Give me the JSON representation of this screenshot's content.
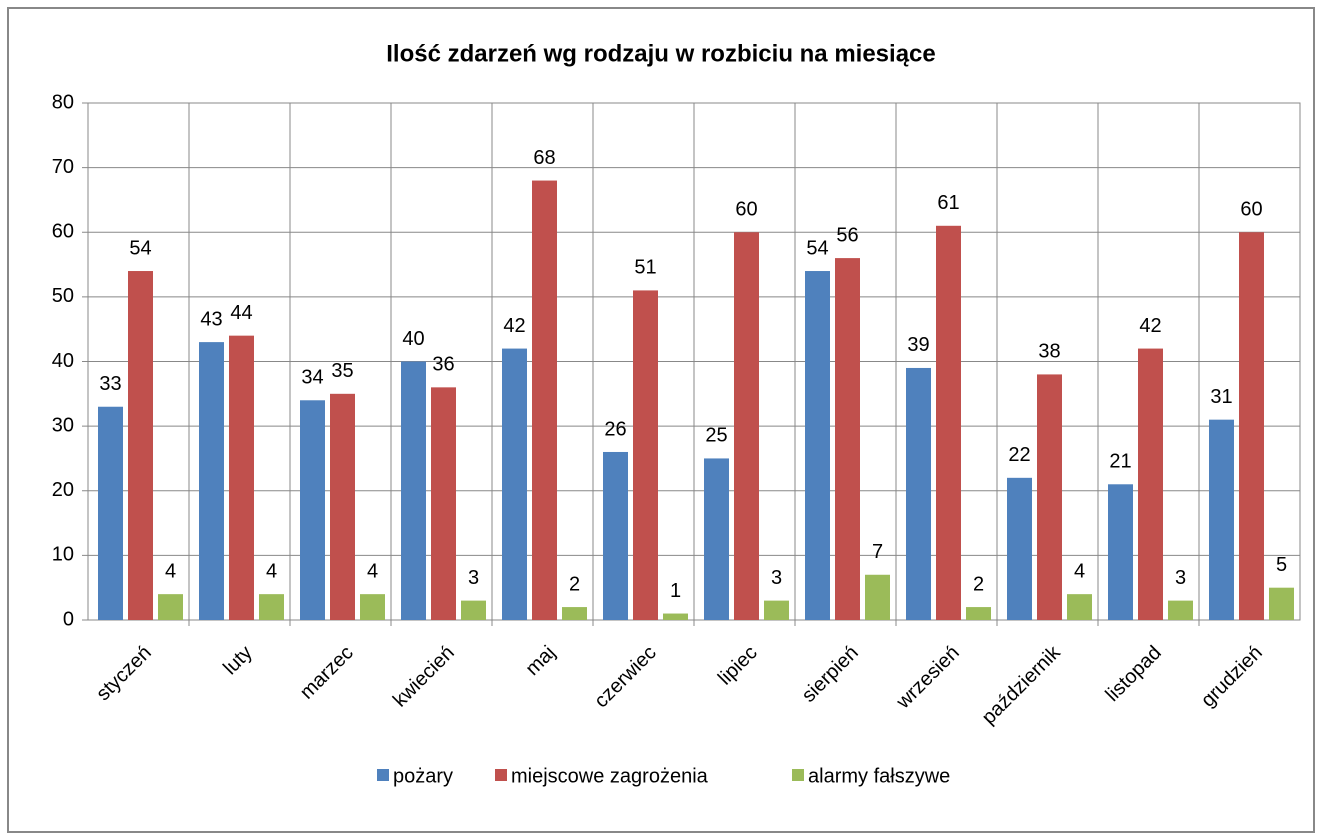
{
  "chart_data": {
    "type": "bar",
    "title": "Ilość zdarzeń wg rodzaju w rozbiciu na miesiące",
    "categories": [
      "styczeń",
      "luty",
      "marzec",
      "kwiecień",
      "maj",
      "czerwiec",
      "lipiec",
      "sierpień",
      "wrzesień",
      "październik",
      "listopad",
      "grudzień"
    ],
    "series": [
      {
        "name": "pożary",
        "color": "#4f81bd",
        "values": [
          33,
          43,
          34,
          40,
          42,
          26,
          25,
          54,
          39,
          22,
          21,
          31
        ]
      },
      {
        "name": "miejscowe zagrożenia",
        "color": "#c0504d",
        "values": [
          54,
          44,
          35,
          36,
          68,
          51,
          60,
          56,
          61,
          38,
          42,
          60
        ]
      },
      {
        "name": "alarmy fałszywe",
        "color": "#9bbb59",
        "values": [
          4,
          4,
          4,
          3,
          2,
          1,
          3,
          7,
          2,
          4,
          3,
          5
        ]
      }
    ],
    "ylim": [
      0,
      80
    ],
    "yticks": [
      0,
      10,
      20,
      30,
      40,
      50,
      60,
      70,
      80
    ],
    "grid": true,
    "legend": "bottom"
  }
}
